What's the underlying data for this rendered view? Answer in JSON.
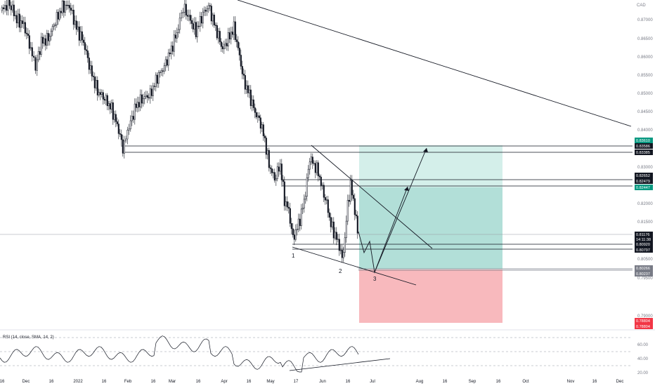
{
  "currency": "CAD",
  "colors": {
    "up": "#ffffff",
    "down": "#131722",
    "wick": "#131722",
    "target_zone": "#b2dfd8",
    "target_zone_light": "#d4efea",
    "stop_zone": "#f8b9bd",
    "badge_dark": "#131722",
    "badge_green": "#089981",
    "badge_red": "#f23645",
    "badge_gray": "#787b86",
    "axis_text": "#787b86"
  },
  "price_axis": {
    "ticks": [
      "0.87000",
      "0.86500",
      "0.86000",
      "0.85500",
      "0.85000",
      "0.84500",
      "0.84000",
      "0.83000",
      "0.82000",
      "0.81500",
      "0.80500",
      "0.79500",
      "0.79000"
    ]
  },
  "price_badges": [
    {
      "value": "0.83610",
      "style": "green"
    },
    {
      "value": "0.83586",
      "style": "dark"
    },
    {
      "value": "0.83385",
      "style": "dark"
    },
    {
      "value": "0.82652",
      "style": "dark"
    },
    {
      "value": "0.82479",
      "style": "dark"
    },
    {
      "value": "0.82447",
      "style": "green"
    },
    {
      "value": "0.81176",
      "style": "dark"
    },
    {
      "value": "14:11:38",
      "style": "dark"
    },
    {
      "value": "0.80920",
      "style": "dark"
    },
    {
      "value": "0.80797",
      "style": "dark"
    },
    {
      "value": "0.80266",
      "style": "gray"
    },
    {
      "value": "0.80237",
      "style": "gray"
    },
    {
      "value": "0.78804",
      "style": "red"
    },
    {
      "value": "0.78804",
      "style": "red"
    }
  ],
  "time_axis": {
    "labels": [
      "16",
      "Dec",
      "16",
      "2022",
      "16",
      "Feb",
      "16",
      "Mar",
      "16",
      "Apr",
      "16",
      "May",
      "17",
      "Jun",
      "16",
      "Jul",
      "Aug",
      "16",
      "Sep",
      "16",
      "Oct",
      "Nov",
      "16",
      "Dec"
    ]
  },
  "rsi": {
    "label": "RSI (14, close, SMA, 14, 2)",
    "ticks": [
      "60.00",
      "40.00",
      "20.00"
    ]
  },
  "wave_labels": [
    "1",
    "2",
    "3"
  ]
}
